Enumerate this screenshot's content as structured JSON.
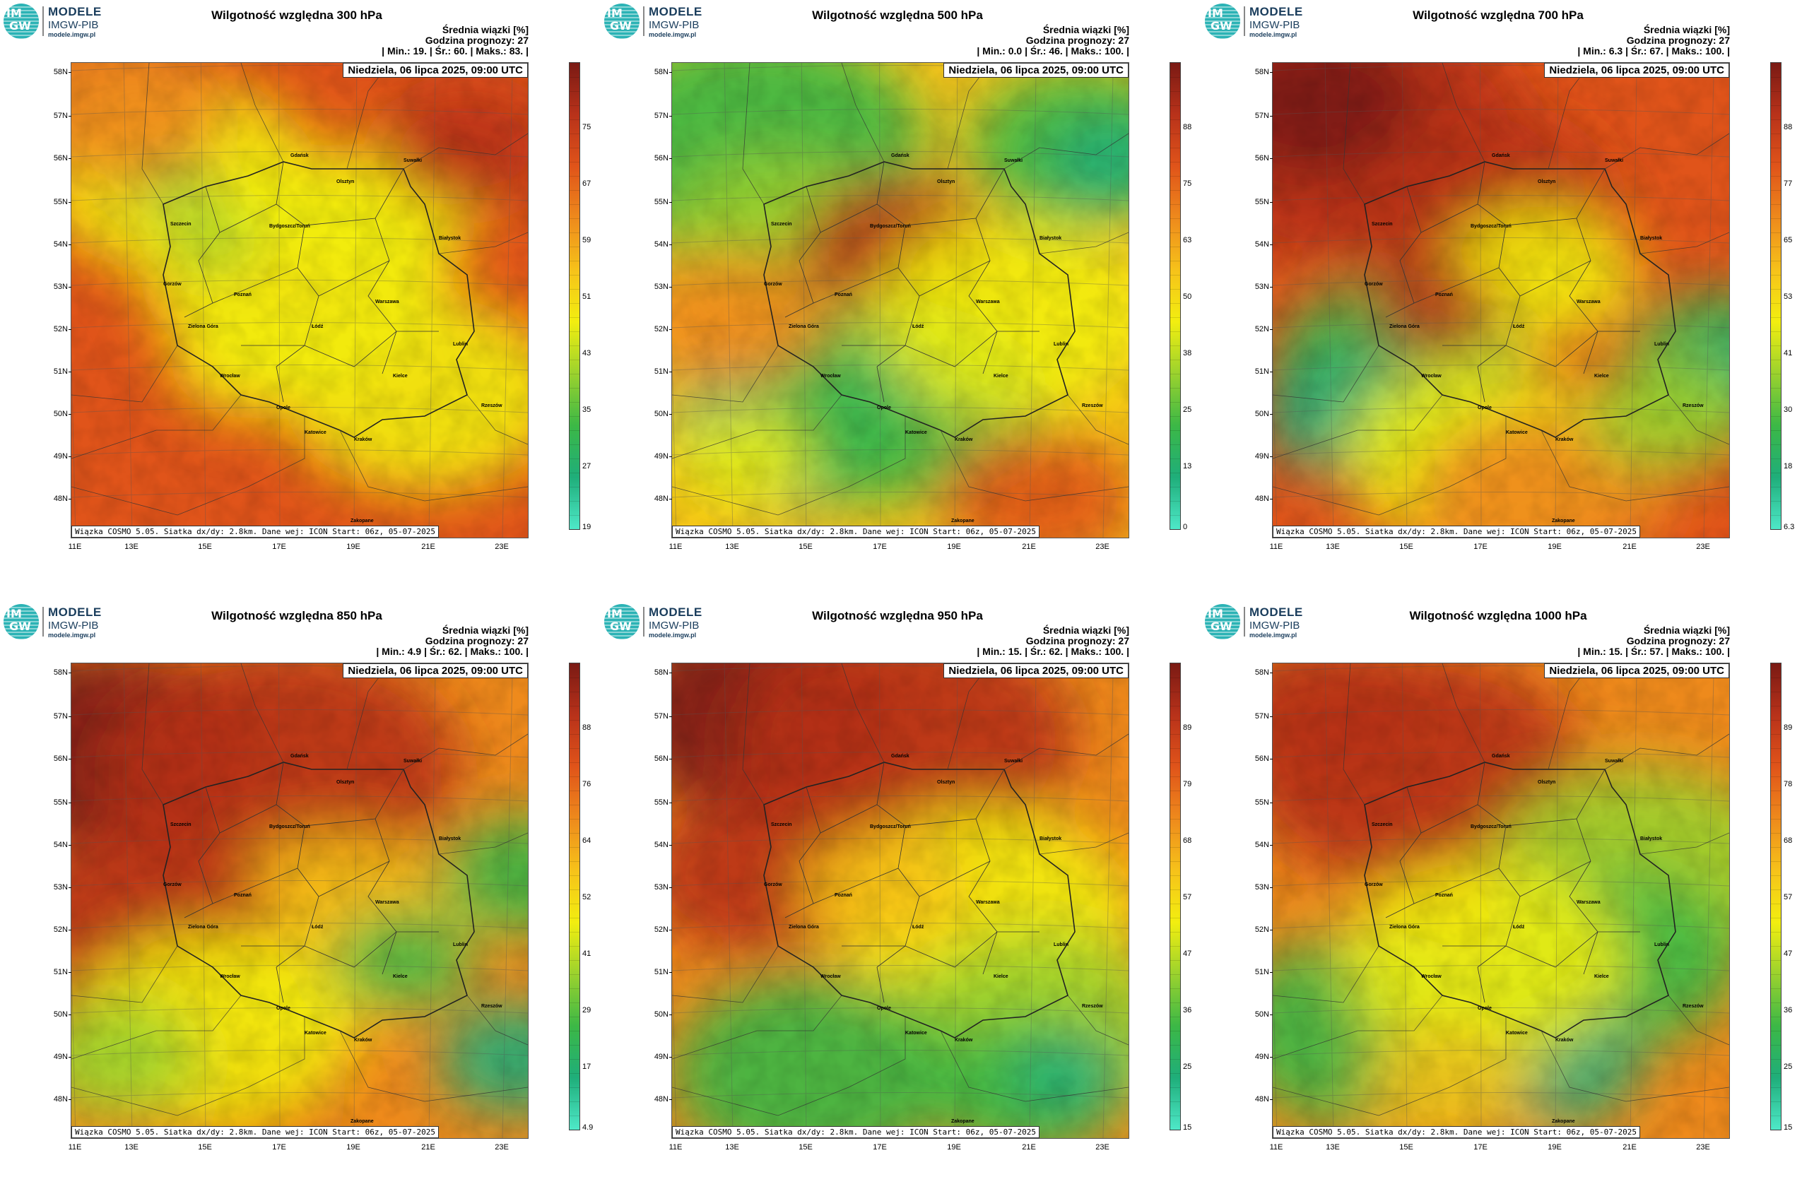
{
  "logo": {
    "line1": "MODELE",
    "line2": "IMGW-PIB",
    "url": "modele.imgw.pl",
    "mark_top": "IM",
    "mark_bottom": "GW"
  },
  "common": {
    "subtitle": "Średnia wiązki [%]",
    "forecast_hour": "Godzina prognozy: 27",
    "date": "Niedziela, 06 lipca 2025, 09:00 UTC",
    "footer": "Wiązka COSMO 5.05. Siatka dx/dy: 2.8km. Dane wej: ICON Start: 06z, 05-07-2025",
    "lat_labels": [
      "58N",
      "57N",
      "56N",
      "55N",
      "54N",
      "53N",
      "52N",
      "51N",
      "50N",
      "49N",
      "48N"
    ],
    "lon_labels": [
      "11E",
      "13E",
      "15E",
      "17E",
      "19E",
      "21E",
      "23E"
    ],
    "cities": [
      "Gdańsk",
      "Suwałki",
      "Olsztyn",
      "Szczecin",
      "Bydgoszcz/Toruń",
      "Białystok",
      "Gorzów",
      "Poznań",
      "Warszawa",
      "Zielona Góra",
      "Łódź",
      "Lublin",
      "Wrocław",
      "Kielce",
      "Opole",
      "Rzeszów",
      "Katowice",
      "Kraków",
      "Zakopane"
    ]
  },
  "colors": {
    "ramp": [
      "#4ee8c8",
      "#1fae7a",
      "#3cb846",
      "#9bd22e",
      "#f2ee10",
      "#f6c21a",
      "#ee8a1c",
      "#e0541a",
      "#b8321a",
      "#7a1a14"
    ]
  },
  "chart_data": [
    {
      "type": "heatmap",
      "title": "Wilgotność względna 300 hPa",
      "stats": "| Min.:     19. | Śr.:     60. | Maks.:     83. |",
      "min": 19,
      "mean": 60,
      "max": 83,
      "colorbar_ticks": [
        "75",
        "67",
        "59",
        "51",
        "43",
        "35",
        "27",
        "19"
      ],
      "lat_range": [
        47.6,
        58.2
      ],
      "lon_range": [
        11,
        23.5
      ]
    },
    {
      "type": "heatmap",
      "title": "Wilgotność względna 500 hPa",
      "stats": "| Min.:     0.0 | Śr.:     46. | Maks.:     100. |",
      "min": 0,
      "mean": 46,
      "max": 100,
      "colorbar_ticks": [
        "88",
        "75",
        "63",
        "50",
        "38",
        "25",
        "13",
        "0"
      ],
      "lat_range": [
        47.6,
        58.2
      ],
      "lon_range": [
        11,
        23.5
      ]
    },
    {
      "type": "heatmap",
      "title": "Wilgotność względna 700 hPa",
      "stats": "| Min.:     6.3 | Śr.:     67. | Maks.:     100. |",
      "min": 6.3,
      "mean": 67,
      "max": 100,
      "colorbar_ticks": [
        "88",
        "77",
        "65",
        "53",
        "41",
        "30",
        "18",
        "6.3"
      ],
      "lat_range": [
        47.6,
        58.2
      ],
      "lon_range": [
        11,
        23.5
      ]
    },
    {
      "type": "heatmap",
      "title": "Wilgotność względna 850 hPa",
      "stats": "| Min.:     4.9 | Śr.:     62. | Maks.:     100. |",
      "min": 4.9,
      "mean": 62,
      "max": 100,
      "colorbar_ticks": [
        "88",
        "76",
        "64",
        "52",
        "41",
        "29",
        "17",
        "4.9"
      ],
      "lat_range": [
        47.6,
        58.2
      ],
      "lon_range": [
        11,
        23.5
      ]
    },
    {
      "type": "heatmap",
      "title": "Wilgotność względna 950 hPa",
      "stats": "| Min.:     15. | Śr.:     62. | Maks.:     100. |",
      "min": 15,
      "mean": 62,
      "max": 100,
      "colorbar_ticks": [
        "89",
        "79",
        "68",
        "57",
        "47",
        "36",
        "25",
        "15"
      ],
      "lat_range": [
        47.6,
        58.2
      ],
      "lon_range": [
        11,
        23.5
      ]
    },
    {
      "type": "heatmap",
      "title": "Wilgotność względna 1000 hPa",
      "stats": "| Min.:     15. | Śr.:     57. | Maks.:     100. |",
      "min": 15,
      "mean": 57,
      "max": 100,
      "colorbar_ticks": [
        "89",
        "78",
        "68",
        "57",
        "47",
        "36",
        "25",
        "15"
      ],
      "lat_range": [
        47.6,
        58.2
      ],
      "lon_range": [
        11,
        23.5
      ]
    }
  ]
}
